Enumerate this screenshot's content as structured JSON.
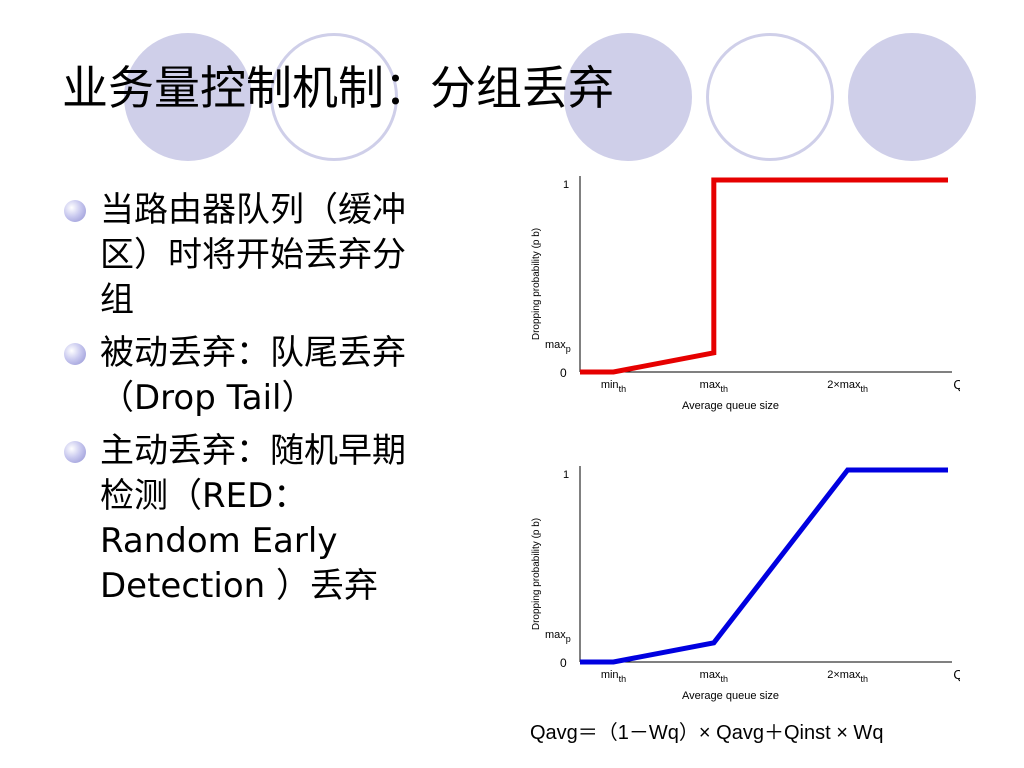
{
  "slide": {
    "title": "业务量控制机制：分组丢弃",
    "bullets": [
      "当路由器队列（缓冲区）时将开始丢弃分组",
      "被动丢弃：队尾丢弃（Drop Tail）",
      "主动丢弃：随机早期检测（RED：Random Early Detection ）丢弃"
    ],
    "formula": "Qavg＝（1－Wq）× Qavg＋Qinst × Wq",
    "decoration_color": "#cfcfe9"
  },
  "chart_data": [
    {
      "type": "line",
      "color": "#e60000",
      "ylabel": "Dropping probability (p b)",
      "xlabel": "Average queue size",
      "xticks": [
        "min th",
        "max th",
        "2×max th",
        "QL"
      ],
      "yticks": [
        "0",
        "max p",
        "1"
      ],
      "series": [
        {
          "x": [
            0,
            0.2,
            0.8,
            0.8,
            1.8,
            2.2
          ],
          "y": [
            0,
            0,
            0.1,
            1,
            1,
            1
          ]
        }
      ]
    },
    {
      "type": "line",
      "color": "#0000e0",
      "ylabel": "Dropping probability (p b)",
      "xlabel": "Average queue size",
      "xticks": [
        "min th",
        "max th",
        "2×max th",
        "QL"
      ],
      "yticks": [
        "0",
        "max p",
        "1"
      ],
      "series": [
        {
          "x": [
            0,
            0.2,
            0.8,
            1.6,
            2.2
          ],
          "y": [
            0,
            0,
            0.1,
            1,
            1
          ]
        }
      ]
    }
  ]
}
